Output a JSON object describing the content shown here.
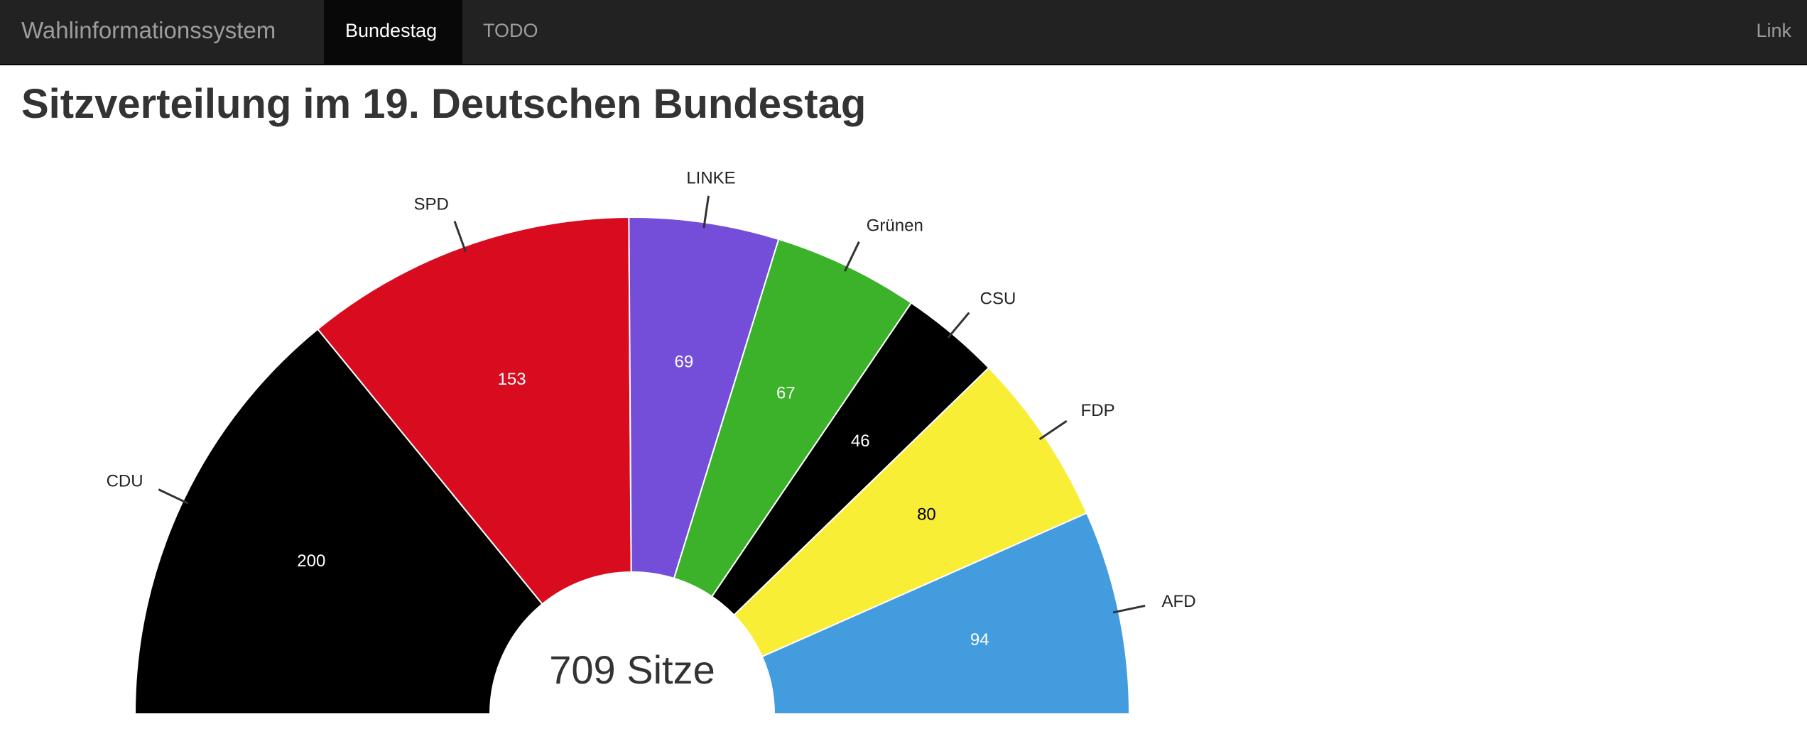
{
  "navbar": {
    "brand": "Wahlinformationssystem",
    "items": [
      {
        "label": "Bundestag",
        "active": true
      },
      {
        "label": "TODO",
        "active": false
      }
    ],
    "right_link": "Link"
  },
  "page": {
    "title": "Sitzverteilung im 19. Deutschen Bundestag"
  },
  "chart_data": {
    "type": "pie",
    "variant": "half-donut",
    "total_label": "709 Sitze",
    "total": 709,
    "slices": [
      {
        "party": "CDU",
        "seats": 200,
        "color": "#000000",
        "text_color": "#ffffff"
      },
      {
        "party": "SPD",
        "seats": 153,
        "color": "#d80b1f",
        "text_color": "#ffffff"
      },
      {
        "party": "LINKE",
        "seats": 69,
        "color": "#744ed9",
        "text_color": "#ffffff"
      },
      {
        "party": "Grünen",
        "seats": 67,
        "color": "#3cb12a",
        "text_color": "#ffffff"
      },
      {
        "party": "CSU",
        "seats": 46,
        "color": "#000000",
        "text_color": "#ffffff"
      },
      {
        "party": "FDP",
        "seats": 80,
        "color": "#f9ee36",
        "text_color": "#000000"
      },
      {
        "party": "AFD",
        "seats": 94,
        "color": "#439cde",
        "text_color": "#ffffff"
      }
    ]
  }
}
